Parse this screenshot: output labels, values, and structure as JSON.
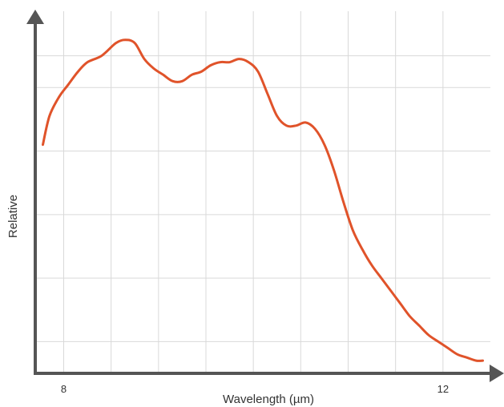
{
  "chart_data": {
    "type": "line",
    "title": "",
    "xlabel": "Wavelength (µm)",
    "ylabel": "Relative",
    "x_ticks": [
      8,
      12
    ],
    "x_tick_labels": [
      "8",
      "12"
    ],
    "xlim": [
      7.7,
      12.5
    ],
    "ylim": [
      0,
      1.1
    ],
    "grid": true,
    "grid_x": [
      8,
      8.5,
      9,
      9.5,
      10,
      10.5,
      11,
      11.5,
      12
    ],
    "grid_y": [
      0.1,
      0.3,
      0.5,
      0.7,
      0.9,
      1.0
    ],
    "series": [
      {
        "color": "#E0532A",
        "x": [
          7.78,
          7.85,
          7.95,
          8.05,
          8.15,
          8.25,
          8.4,
          8.55,
          8.65,
          8.75,
          8.85,
          8.95,
          9.05,
          9.15,
          9.25,
          9.35,
          9.45,
          9.55,
          9.65,
          9.75,
          9.85,
          9.95,
          10.05,
          10.15,
          10.25,
          10.35,
          10.45,
          10.55,
          10.65,
          10.75,
          10.85,
          10.95,
          11.05,
          11.15,
          11.25,
          11.35,
          11.45,
          11.55,
          11.65,
          11.75,
          11.85,
          11.95,
          12.05,
          12.15,
          12.25,
          12.35,
          12.42
        ],
        "values": [
          0.72,
          0.81,
          0.87,
          0.91,
          0.95,
          0.98,
          1.0,
          1.04,
          1.05,
          1.04,
          0.99,
          0.96,
          0.94,
          0.92,
          0.92,
          0.94,
          0.95,
          0.97,
          0.98,
          0.98,
          0.99,
          0.98,
          0.95,
          0.88,
          0.81,
          0.78,
          0.78,
          0.79,
          0.77,
          0.72,
          0.64,
          0.54,
          0.45,
          0.39,
          0.34,
          0.3,
          0.26,
          0.22,
          0.18,
          0.15,
          0.12,
          0.1,
          0.08,
          0.06,
          0.05,
          0.04,
          0.04
        ]
      }
    ]
  }
}
